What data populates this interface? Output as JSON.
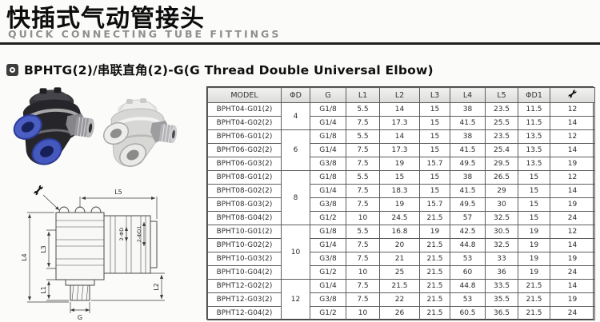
{
  "page": {
    "title_zh": "快插式气动管接头",
    "title_en": "QUICK CONNECTING TUBE FITTINGS"
  },
  "section": {
    "bullet_icon": "target-icon",
    "title": "BPHTG(2)/串联直角(2)-G(G Thread Double Universal Elbow)"
  },
  "images": {
    "photo_black": "black-elbow-fitting-photo",
    "photo_white": "white-elbow-fitting-photo"
  },
  "drawing": {
    "labels": {
      "l5": "L5",
      "l4": "L4",
      "l3": "L3",
      "l1": "L1",
      "l2": "L2",
      "g": "G",
      "d": "2-ΦD",
      "d1": "2-ΦD1"
    },
    "wrench_icon": "wrench-icon"
  },
  "colors": {
    "collet_blue": "#4a5ec4",
    "table_header_bg": "#e4e4e2",
    "header_rule": "#1f1f1f"
  },
  "table": {
    "headers": [
      "MODEL",
      "ΦD",
      "G",
      "L1",
      "L2",
      "L3",
      "L4",
      "L5",
      "ΦD1"
    ],
    "last_column_icon": "wrench-icon",
    "groups": [
      {
        "d": "4",
        "rows": [
          {
            "model": "BPHT04-G01(2)",
            "g": "G1/8",
            "l1": "5.5",
            "l2": "14",
            "l3": "15",
            "l4": "38",
            "l5": "23.5",
            "d1": "11.5",
            "wrench": "12"
          },
          {
            "model": "BPHT04-G02(2)",
            "g": "G1/4",
            "l1": "7.5",
            "l2": "17.3",
            "l3": "15",
            "l4": "41.5",
            "l5": "25.5",
            "d1": "11.5",
            "wrench": "14"
          }
        ]
      },
      {
        "d": "6",
        "rows": [
          {
            "model": "BPHT06-G01(2)",
            "g": "G1/8",
            "l1": "5.5",
            "l2": "14",
            "l3": "15",
            "l4": "38",
            "l5": "23.5",
            "d1": "13.5",
            "wrench": "12"
          },
          {
            "model": "BPHT06-G02(2)",
            "g": "G1/4",
            "l1": "7.5",
            "l2": "17.3",
            "l3": "15",
            "l4": "41.5",
            "l5": "25.4",
            "d1": "13.5",
            "wrench": "14"
          },
          {
            "model": "BPHT06-G03(2)",
            "g": "G3/8",
            "l1": "7.5",
            "l2": "19",
            "l3": "15.7",
            "l4": "49.5",
            "l5": "29.5",
            "d1": "13.5",
            "wrench": "19"
          }
        ]
      },
      {
        "d": "8",
        "rows": [
          {
            "model": "BPHT08-G01(2)",
            "g": "G1/8",
            "l1": "5.5",
            "l2": "15",
            "l3": "15",
            "l4": "38",
            "l5": "26.5",
            "d1": "15",
            "wrench": "12"
          },
          {
            "model": "BPHT08-G02(2)",
            "g": "G1/4",
            "l1": "7.5",
            "l2": "18.3",
            "l3": "15",
            "l4": "41.5",
            "l5": "29",
            "d1": "15",
            "wrench": "14"
          },
          {
            "model": "BPHT08-G03(2)",
            "g": "G3/8",
            "l1": "7.5",
            "l2": "19",
            "l3": "15.7",
            "l4": "49.5",
            "l5": "30",
            "d1": "15",
            "wrench": "19"
          },
          {
            "model": "BPHT08-G04(2)",
            "g": "G1/2",
            "l1": "10",
            "l2": "24.5",
            "l3": "21.5",
            "l4": "57",
            "l5": "32.5",
            "d1": "15",
            "wrench": "24"
          }
        ]
      },
      {
        "d": "10",
        "rows": [
          {
            "model": "BPHT10-G01(2)",
            "g": "G1/8",
            "l1": "5.5",
            "l2": "16.8",
            "l3": "19",
            "l4": "42.5",
            "l5": "30.5",
            "d1": "19",
            "wrench": "12"
          },
          {
            "model": "BPHT10-G02(2)",
            "g": "G1/4",
            "l1": "7.5",
            "l2": "20",
            "l3": "21.5",
            "l4": "44.8",
            "l5": "32.5",
            "d1": "19",
            "wrench": "14"
          },
          {
            "model": "BPHT10-G03(2)",
            "g": "G3/8",
            "l1": "7.5",
            "l2": "21",
            "l3": "21.5",
            "l4": "53",
            "l5": "33",
            "d1": "19",
            "wrench": "19"
          },
          {
            "model": "BPHT10-G04(2)",
            "g": "G1/2",
            "l1": "10",
            "l2": "25",
            "l3": "21.5",
            "l4": "60",
            "l5": "36",
            "d1": "19",
            "wrench": "24"
          }
        ]
      },
      {
        "d": "12",
        "rows": [
          {
            "model": "BPHT12-G02(2)",
            "g": "G1/4",
            "l1": "7.5",
            "l2": "21.5",
            "l3": "21.5",
            "l4": "44.8",
            "l5": "33.5",
            "d1": "21.5",
            "wrench": "14"
          },
          {
            "model": "BPHT12-G03(2)",
            "g": "G3/8",
            "l1": "7.5",
            "l2": "22",
            "l3": "21.5",
            "l4": "53",
            "l5": "35.5",
            "d1": "21.5",
            "wrench": "19"
          },
          {
            "model": "BPHT12-G04(2)",
            "g": "G1/2",
            "l1": "10",
            "l2": "26",
            "l3": "21.5",
            "l4": "60.5",
            "l5": "36.5",
            "d1": "21.5",
            "wrench": "24"
          }
        ]
      }
    ]
  }
}
